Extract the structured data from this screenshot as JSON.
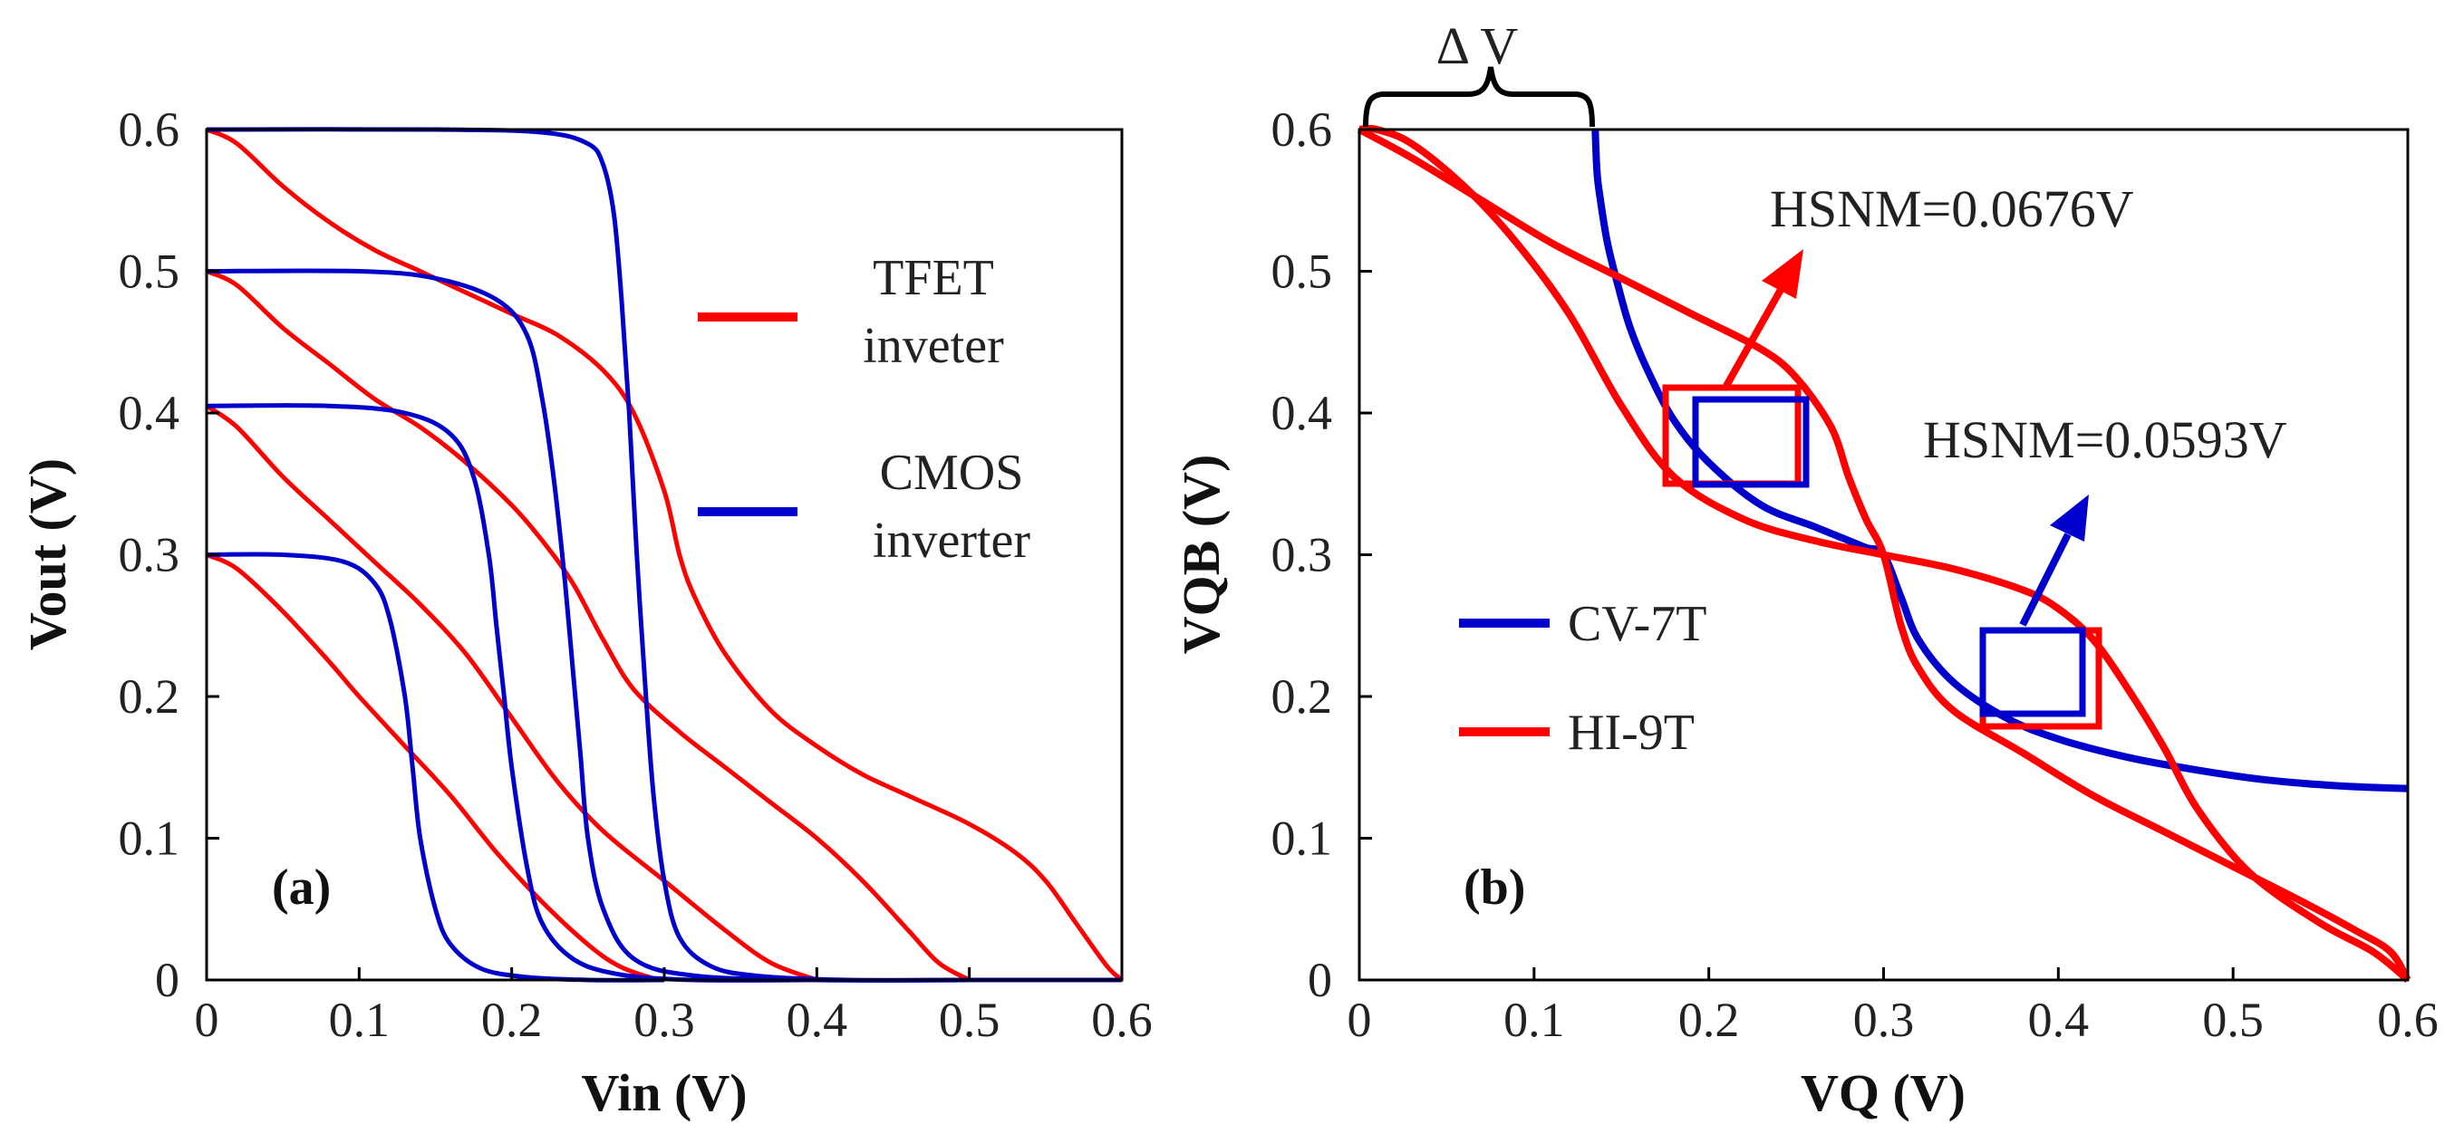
{
  "chart_data": [
    {
      "type": "line",
      "panel_label": "(a)",
      "xlabel": "Vin (V)",
      "ylabel": "Vout  (V)",
      "xlim": [
        0,
        0.6
      ],
      "ylim": [
        0,
        0.6
      ],
      "xticks": [
        "0",
        "0.1",
        "0.2",
        "0.3",
        "0.4",
        "0.5",
        "0.6"
      ],
      "yticks": [
        "0",
        "0.1",
        "0.2",
        "0.3",
        "0.4",
        "0.5",
        "0.6"
      ],
      "legend": {
        "placement": "right",
        "entries": [
          {
            "lines": [
              "TFET",
              "inveter"
            ],
            "color": "#ff0000"
          },
          {
            "lines": [
              "CMOS",
              "inverter"
            ],
            "color": "#0000cc"
          }
        ]
      },
      "series": [
        {
          "group": "TFET inveter",
          "color": "#ff0000",
          "x": [
            0,
            0.02,
            0.05,
            0.08,
            0.1,
            0.13,
            0.16,
            0.19,
            0.22,
            0.25,
            0.27,
            0.29,
            0.3
          ],
          "y": [
            0.3,
            0.29,
            0.26,
            0.225,
            0.2,
            0.165,
            0.13,
            0.09,
            0.055,
            0.025,
            0.01,
            0.002,
            0
          ]
        },
        {
          "group": "TFET inveter",
          "color": "#ff0000",
          "x": [
            0,
            0.02,
            0.05,
            0.08,
            0.11,
            0.14,
            0.17,
            0.2,
            0.23,
            0.26,
            0.3,
            0.34,
            0.37,
            0.4
          ],
          "y": [
            0.405,
            0.39,
            0.355,
            0.325,
            0.295,
            0.265,
            0.23,
            0.185,
            0.14,
            0.105,
            0.07,
            0.035,
            0.012,
            0
          ]
        },
        {
          "group": "TFET inveter",
          "color": "#ff0000",
          "x": [
            0,
            0.02,
            0.05,
            0.08,
            0.11,
            0.14,
            0.17,
            0.2,
            0.22,
            0.24,
            0.26,
            0.28,
            0.31,
            0.34,
            0.37,
            0.4,
            0.43,
            0.46,
            0.48,
            0.5
          ],
          "y": [
            0.5,
            0.49,
            0.46,
            0.435,
            0.41,
            0.39,
            0.365,
            0.335,
            0.31,
            0.28,
            0.24,
            0.205,
            0.175,
            0.15,
            0.125,
            0.1,
            0.07,
            0.035,
            0.012,
            0
          ]
        },
        {
          "group": "TFET inveter",
          "color": "#ff0000",
          "x": [
            0,
            0.02,
            0.05,
            0.08,
            0.11,
            0.14,
            0.17,
            0.2,
            0.23,
            0.26,
            0.28,
            0.3,
            0.31,
            0.32,
            0.34,
            0.37,
            0.4,
            0.43,
            0.46,
            0.5,
            0.53,
            0.55,
            0.57,
            0.59,
            0.6
          ],
          "y": [
            0.6,
            0.59,
            0.56,
            0.535,
            0.515,
            0.5,
            0.485,
            0.47,
            0.455,
            0.43,
            0.4,
            0.345,
            0.3,
            0.27,
            0.23,
            0.19,
            0.165,
            0.145,
            0.13,
            0.11,
            0.09,
            0.07,
            0.04,
            0.01,
            0
          ]
        },
        {
          "group": "CMOS inverter",
          "color": "#0000cc",
          "x": [
            0,
            0.05,
            0.09,
            0.11,
            0.12,
            0.13,
            0.135,
            0.14,
            0.15,
            0.16,
            0.18,
            0.21,
            0.25,
            0.3
          ],
          "y": [
            0.3,
            0.3,
            0.295,
            0.28,
            0.255,
            0.2,
            0.15,
            0.1,
            0.05,
            0.025,
            0.008,
            0.002,
            0,
            0
          ]
        },
        {
          "group": "CMOS inverter",
          "color": "#0000cc",
          "x": [
            0,
            0.08,
            0.13,
            0.16,
            0.175,
            0.185,
            0.19,
            0.195,
            0.2,
            0.21,
            0.22,
            0.24,
            0.27,
            0.32,
            0.4
          ],
          "y": [
            0.405,
            0.405,
            0.4,
            0.385,
            0.355,
            0.3,
            0.25,
            0.2,
            0.15,
            0.08,
            0.04,
            0.015,
            0.004,
            0,
            0
          ]
        },
        {
          "group": "CMOS inverter",
          "color": "#0000cc",
          "x": [
            0,
            0.1,
            0.15,
            0.19,
            0.21,
            0.22,
            0.228,
            0.235,
            0.24,
            0.245,
            0.25,
            0.26,
            0.28,
            0.32,
            0.4,
            0.5
          ],
          "y": [
            0.5,
            0.5,
            0.495,
            0.48,
            0.455,
            0.41,
            0.35,
            0.28,
            0.22,
            0.16,
            0.1,
            0.05,
            0.015,
            0.003,
            0,
            0
          ]
        },
        {
          "group": "CMOS inverter",
          "color": "#0000cc",
          "x": [
            0,
            0.15,
            0.22,
            0.25,
            0.26,
            0.267,
            0.272,
            0.277,
            0.282,
            0.288,
            0.293,
            0.3,
            0.31,
            0.33,
            0.36,
            0.42,
            0.5,
            0.6
          ],
          "y": [
            0.6,
            0.6,
            0.598,
            0.59,
            0.575,
            0.54,
            0.48,
            0.4,
            0.3,
            0.2,
            0.13,
            0.07,
            0.03,
            0.01,
            0.003,
            0,
            0,
            0
          ]
        }
      ]
    },
    {
      "type": "line",
      "panel_label": "(b)",
      "xlabel": "VQ (V)",
      "ylabel": "VQB  (V)",
      "xlim": [
        0,
        0.6
      ],
      "ylim": [
        0,
        0.6
      ],
      "xticks": [
        "0",
        "0.1",
        "0.2",
        "0.3",
        "0.4",
        "0.5",
        "0.6"
      ],
      "yticks": [
        "0",
        "0.1",
        "0.2",
        "0.3",
        "0.4",
        "0.5",
        "0.6"
      ],
      "legend": {
        "placement": "left",
        "entries": [
          {
            "lines": [
              "CV-7T"
            ],
            "color": "#0000cc"
          },
          {
            "lines": [
              "HI-9T"
            ],
            "color": "#ff0000"
          }
        ]
      },
      "series": [
        {
          "name": "CV-7T",
          "color": "#0000cc",
          "x": [
            0.135,
            0.136,
            0.138,
            0.142,
            0.148,
            0.155,
            0.165,
            0.18,
            0.2,
            0.23,
            0.26,
            0.28,
            0.29,
            0.3,
            0.31,
            0.32,
            0.34,
            0.37,
            0.4,
            0.44,
            0.48,
            0.52,
            0.56,
            0.6
          ],
          "y": [
            0.6,
            0.57,
            0.55,
            0.52,
            0.49,
            0.46,
            0.43,
            0.395,
            0.365,
            0.335,
            0.32,
            0.31,
            0.305,
            0.3,
            0.27,
            0.24,
            0.21,
            0.185,
            0.17,
            0.157,
            0.148,
            0.141,
            0.137,
            0.135
          ]
        },
        {
          "name": "HI-9T",
          "color": "#ff0000",
          "x": [
            0,
            0.03,
            0.07,
            0.11,
            0.15,
            0.19,
            0.23,
            0.25,
            0.27,
            0.28,
            0.29,
            0.3,
            0.31,
            0.32,
            0.34,
            0.38,
            0.42,
            0.46,
            0.5,
            0.54,
            0.57,
            0.59,
            0.6
          ],
          "y": [
            0.6,
            0.58,
            0.55,
            0.52,
            0.495,
            0.47,
            0.445,
            0.425,
            0.39,
            0.355,
            0.325,
            0.3,
            0.25,
            0.22,
            0.19,
            0.16,
            0.13,
            0.105,
            0.08,
            0.055,
            0.035,
            0.02,
            0
          ]
        },
        {
          "name": "HI-9T",
          "color": "#ff0000",
          "x": [
            0,
            0.01,
            0.03,
            0.06,
            0.09,
            0.12,
            0.15,
            0.18,
            0.22,
            0.26,
            0.3,
            0.34,
            0.38,
            0.4,
            0.42,
            0.44,
            0.46,
            0.48,
            0.51,
            0.55,
            0.58,
            0.6
          ],
          "y": [
            0.6,
            0.6,
            0.59,
            0.56,
            0.52,
            0.47,
            0.405,
            0.355,
            0.325,
            0.31,
            0.3,
            0.29,
            0.275,
            0.262,
            0.24,
            0.205,
            0.165,
            0.12,
            0.075,
            0.04,
            0.02,
            0
          ]
        }
      ],
      "annotations": [
        {
          "text": "HSNM=0.0676V",
          "color": "#ff0000"
        },
        {
          "text": "HSNM=0.0593V",
          "color": "#0000cc"
        },
        {
          "text": "Δ V"
        }
      ]
    }
  ]
}
